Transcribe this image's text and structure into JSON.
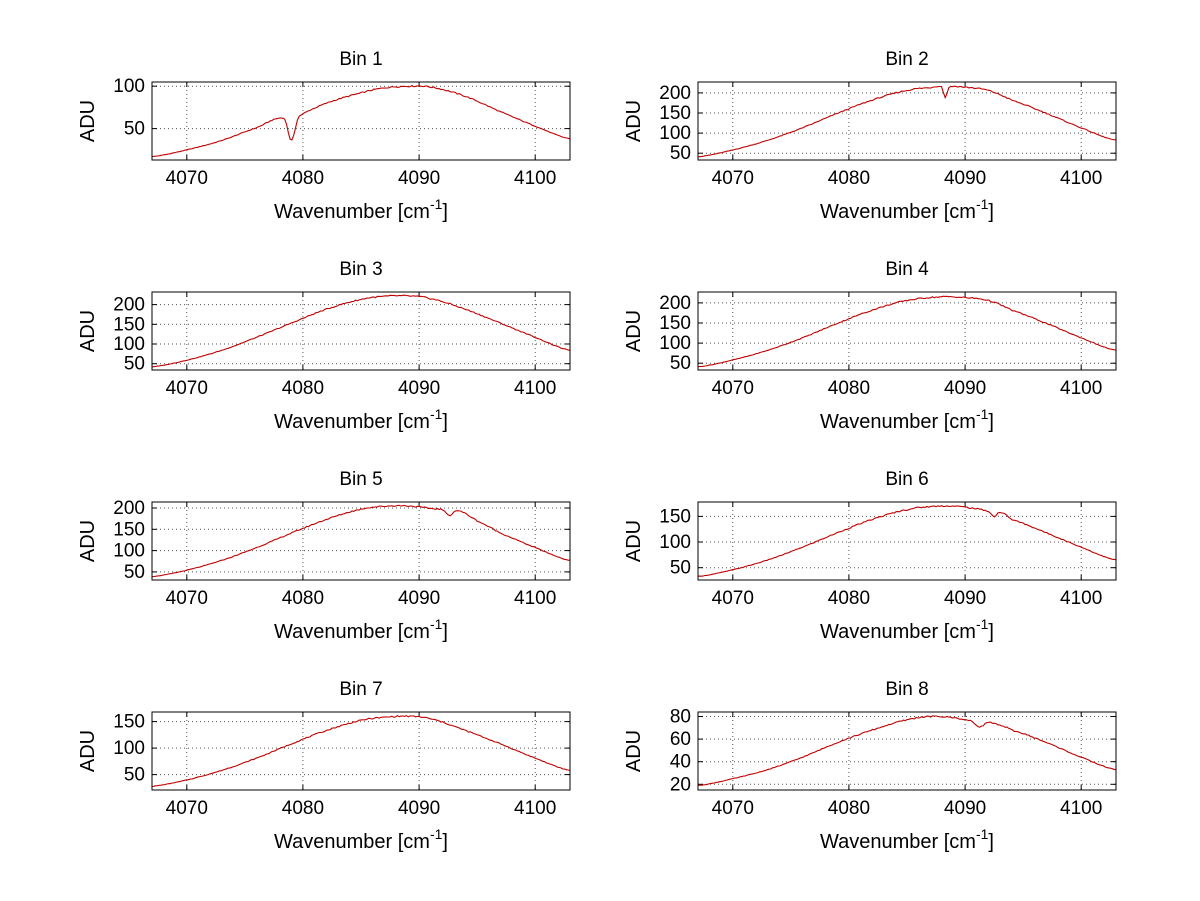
{
  "figure": {
    "background": "#ffffff",
    "axis_color": "#000000",
    "grid_color": "#555555",
    "series_color": "#c00000"
  },
  "chart_data": [
    {
      "type": "line",
      "title": "Bin 1",
      "ylabel": "ADU",
      "xlabel": {
        "pre": "Wavenumber [cm",
        "sup": "-1",
        "post": "]"
      },
      "xlim": [
        4067,
        4103
      ],
      "ylim": [
        13,
        105
      ],
      "xticks": [
        4070,
        4080,
        4090,
        4100
      ],
      "yticks": [
        50,
        100
      ],
      "grid": true,
      "line_color": "#c00000",
      "points": [
        [
          4067,
          17
        ],
        [
          4070,
          25
        ],
        [
          4073,
          36
        ],
        [
          4076,
          51
        ],
        [
          4078.4,
          62
        ],
        [
          4079,
          36
        ],
        [
          4079.6,
          64
        ],
        [
          4082,
          80
        ],
        [
          4085,
          92
        ],
        [
          4087,
          98
        ],
        [
          4089,
          100
        ],
        [
          4091,
          99
        ],
        [
          4094,
          88
        ],
        [
          4097,
          70
        ],
        [
          4100,
          53
        ],
        [
          4103,
          38
        ]
      ]
    },
    {
      "type": "line",
      "title": "Bin 2",
      "ylabel": "ADU",
      "xlabel": {
        "pre": "Wavenumber [cm",
        "sup": "-1",
        "post": "]"
      },
      "xlim": [
        4067,
        4103
      ],
      "ylim": [
        33,
        227
      ],
      "xticks": [
        4070,
        4080,
        4090,
        4100
      ],
      "yticks": [
        50,
        100,
        150,
        200
      ],
      "grid": true,
      "line_color": "#c00000",
      "points": [
        [
          4067,
          41
        ],
        [
          4070,
          58
        ],
        [
          4073,
          82
        ],
        [
          4076,
          113
        ],
        [
          4079,
          149
        ],
        [
          4082,
          182
        ],
        [
          4085,
          206
        ],
        [
          4087,
          213
        ],
        [
          4088,
          215
        ],
        [
          4088.3,
          188
        ],
        [
          4088.6,
          214
        ],
        [
          4090,
          214
        ],
        [
          4092,
          206
        ],
        [
          4094,
          182
        ],
        [
          4097,
          149
        ],
        [
          4100,
          113
        ],
        [
          4103,
          82
        ]
      ]
    },
    {
      "type": "line",
      "title": "Bin 3",
      "ylabel": "ADU",
      "xlabel": {
        "pre": "Wavenumber [cm",
        "sup": "-1",
        "post": "]"
      },
      "xlim": [
        4067,
        4103
      ],
      "ylim": [
        34,
        232
      ],
      "xticks": [
        4070,
        4080,
        4090,
        4100
      ],
      "yticks": [
        50,
        100,
        150,
        200
      ],
      "grid": true,
      "line_color": "#c00000",
      "points": [
        [
          4067,
          42
        ],
        [
          4070,
          59
        ],
        [
          4073,
          84
        ],
        [
          4076,
          117
        ],
        [
          4079,
          153
        ],
        [
          4082,
          188
        ],
        [
          4085,
          213
        ],
        [
          4087,
          221
        ],
        [
          4089,
          222
        ],
        [
          4091,
          215
        ],
        [
          4094,
          188
        ],
        [
          4097,
          153
        ],
        [
          4100,
          117
        ],
        [
          4103,
          84
        ]
      ]
    },
    {
      "type": "line",
      "title": "Bin 4",
      "ylabel": "ADU",
      "xlabel": {
        "pre": "Wavenumber [cm",
        "sup": "-1",
        "post": "]"
      },
      "xlim": [
        4067,
        4103
      ],
      "ylim": [
        33,
        227
      ],
      "xticks": [
        4070,
        4080,
        4090,
        4100
      ],
      "yticks": [
        50,
        100,
        150,
        200
      ],
      "grid": true,
      "line_color": "#c00000",
      "points": [
        [
          4067,
          41
        ],
        [
          4070,
          58
        ],
        [
          4073,
          82
        ],
        [
          4076,
          113
        ],
        [
          4079,
          149
        ],
        [
          4082,
          182
        ],
        [
          4085,
          206
        ],
        [
          4088,
          215
        ],
        [
          4090,
          213
        ],
        [
          4092,
          206
        ],
        [
          4094,
          182
        ],
        [
          4097,
          149
        ],
        [
          4100,
          113
        ],
        [
          4103,
          82
        ]
      ]
    },
    {
      "type": "line",
      "title": "Bin 5",
      "ylabel": "ADU",
      "xlabel": {
        "pre": "Wavenumber [cm",
        "sup": "-1",
        "post": "]"
      },
      "xlim": [
        4067,
        4103
      ],
      "ylim": [
        31,
        214
      ],
      "xticks": [
        4070,
        4080,
        4090,
        4100
      ],
      "yticks": [
        50,
        100,
        150,
        200
      ],
      "grid": true,
      "line_color": "#c00000",
      "points": [
        [
          4067,
          39
        ],
        [
          4070,
          54
        ],
        [
          4073,
          77
        ],
        [
          4076,
          107
        ],
        [
          4079,
          141
        ],
        [
          4082,
          173
        ],
        [
          4085,
          197
        ],
        [
          4087,
          204
        ],
        [
          4089,
          205
        ],
        [
          4091,
          199
        ],
        [
          4092,
          196
        ],
        [
          4092.6,
          183
        ],
        [
          4093.3,
          194
        ],
        [
          4095,
          170
        ],
        [
          4097,
          141
        ],
        [
          4100,
          107
        ],
        [
          4103,
          77
        ]
      ]
    },
    {
      "type": "line",
      "title": "Bin 6",
      "ylabel": "ADU",
      "xlabel": {
        "pre": "Wavenumber [cm",
        "sup": "-1",
        "post": "]"
      },
      "xlim": [
        4067,
        4103
      ],
      "ylim": [
        26,
        178
      ],
      "xticks": [
        4070,
        4080,
        4090,
        4100
      ],
      "yticks": [
        50,
        100,
        150
      ],
      "grid": true,
      "line_color": "#c00000",
      "points": [
        [
          4067,
          33
        ],
        [
          4070,
          46
        ],
        [
          4073,
          65
        ],
        [
          4076,
          90
        ],
        [
          4079,
          118
        ],
        [
          4082,
          144
        ],
        [
          4085,
          163
        ],
        [
          4087,
          169
        ],
        [
          4089,
          170
        ],
        [
          4091,
          165
        ],
        [
          4092,
          160
        ],
        [
          4092.5,
          150
        ],
        [
          4093,
          158
        ],
        [
          4094,
          144
        ],
        [
          4097,
          118
        ],
        [
          4100,
          90
        ],
        [
          4103,
          65
        ]
      ]
    },
    {
      "type": "line",
      "title": "Bin 7",
      "ylabel": "ADU",
      "xlabel": {
        "pre": "Wavenumber [cm",
        "sup": "-1",
        "post": "]"
      },
      "xlim": [
        4067,
        4103
      ],
      "ylim": [
        21,
        168
      ],
      "xticks": [
        4070,
        4080,
        4090,
        4100
      ],
      "yticks": [
        50,
        100,
        150
      ],
      "grid": true,
      "line_color": "#c00000",
      "points": [
        [
          4067,
          28
        ],
        [
          4070,
          40
        ],
        [
          4073,
          58
        ],
        [
          4076,
          81
        ],
        [
          4079,
          108
        ],
        [
          4082,
          133
        ],
        [
          4085,
          152
        ],
        [
          4087,
          158
        ],
        [
          4089,
          160
        ],
        [
          4091,
          155
        ],
        [
          4094,
          133
        ],
        [
          4097,
          108
        ],
        [
          4100,
          81
        ],
        [
          4103,
          58
        ]
      ]
    },
    {
      "type": "line",
      "title": "Bin 8",
      "ylabel": "ADU",
      "xlabel": {
        "pre": "Wavenumber [cm",
        "sup": "-1",
        "post": "]"
      },
      "xlim": [
        4067,
        4103
      ],
      "ylim": [
        15,
        84
      ],
      "xticks": [
        4070,
        4080,
        4090,
        4100
      ],
      "yticks": [
        20,
        40,
        60,
        80
      ],
      "grid": true,
      "line_color": "#c00000",
      "points": [
        [
          4067,
          19
        ],
        [
          4070,
          25
        ],
        [
          4073,
          33
        ],
        [
          4076,
          44
        ],
        [
          4079,
          57
        ],
        [
          4082,
          68
        ],
        [
          4085,
          77
        ],
        [
          4087,
          80
        ],
        [
          4089,
          79
        ],
        [
          4090.5,
          76
        ],
        [
          4091.3,
          71
        ],
        [
          4092,
          75
        ],
        [
          4093,
          72
        ],
        [
          4094,
          68
        ],
        [
          4097,
          57
        ],
        [
          4100,
          44
        ],
        [
          4103,
          33
        ]
      ]
    }
  ]
}
